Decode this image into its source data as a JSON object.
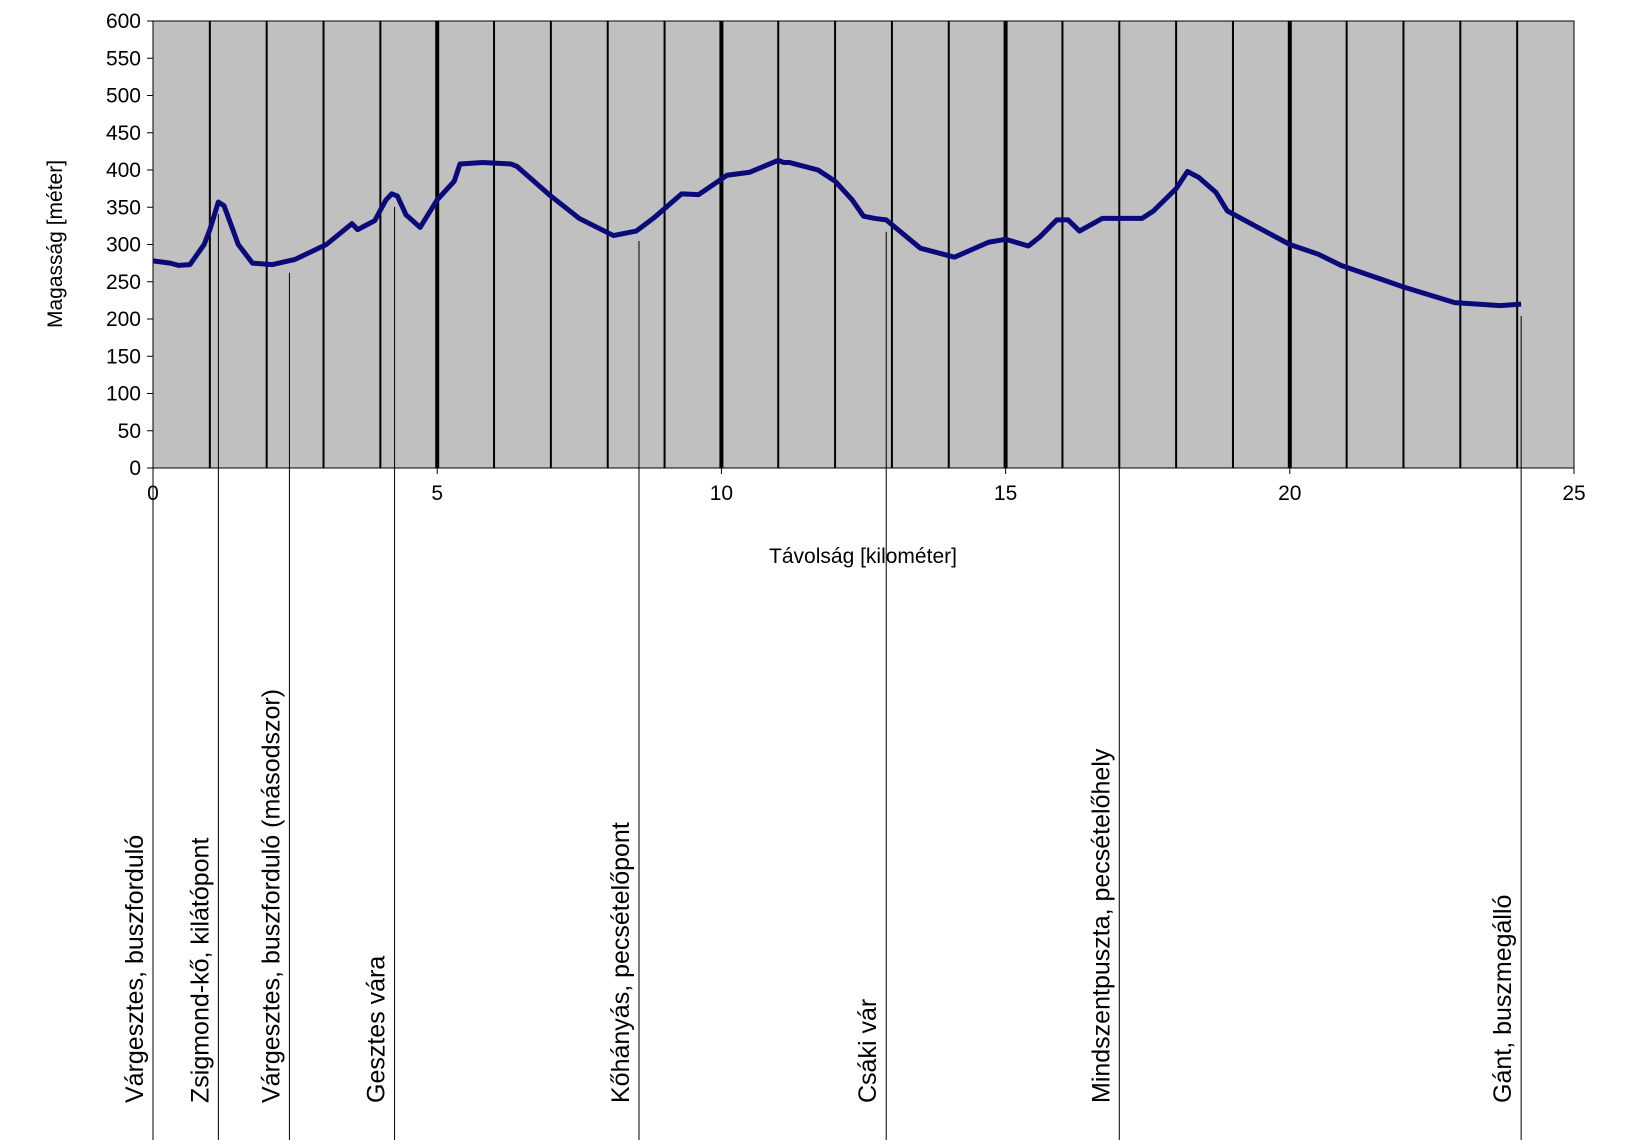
{
  "chart_data": {
    "type": "line",
    "xlabel": "Távolság [kilométer]",
    "ylabel": "Magasság [méter]",
    "xlim": [
      0,
      25
    ],
    "xticks": [
      0,
      5,
      10,
      15,
      20,
      25
    ],
    "ylim": [
      0,
      600
    ],
    "yticks": [
      0,
      50,
      100,
      150,
      200,
      250,
      300,
      350,
      400,
      450,
      500,
      550,
      600
    ],
    "grid": true,
    "series": [
      {
        "color": "#0a0a7a",
        "x": [
          0,
          0.3,
          0.45,
          0.65,
          0.9,
          1.0,
          1.15,
          1.25,
          1.5,
          1.75,
          2.1,
          2.5,
          3.05,
          3.5,
          3.6,
          3.9,
          4.1,
          4.2,
          4.3,
          4.45,
          4.7,
          5.0,
          5.3,
          5.4,
          5.8,
          6.3,
          6.4,
          7.0,
          7.5,
          8.1,
          8.5,
          8.8,
          9.3,
          9.6,
          9.85,
          10.1,
          10.5,
          11.0,
          11.1,
          11.2,
          11.7,
          12.0,
          12.3,
          12.5,
          12.7,
          12.9,
          13.5,
          14.1,
          14.7,
          15.0,
          15.4,
          15.6,
          15.9,
          16.1,
          16.3,
          16.7,
          17.4,
          17.6,
          18.0,
          18.2,
          18.4,
          18.7,
          18.9,
          20.0,
          20.5,
          20.9,
          22.0,
          22.9,
          23.7,
          24.07
        ],
        "values": [
          278,
          275,
          272,
          273,
          300,
          320,
          357,
          352,
          300,
          275,
          273,
          280,
          300,
          328,
          320,
          332,
          360,
          368,
          365,
          340,
          323,
          360,
          385,
          408,
          410,
          408,
          405,
          365,
          335,
          312,
          318,
          335,
          368,
          367,
          380,
          393,
          397,
          413,
          410,
          410,
          400,
          385,
          360,
          338,
          335,
          333,
          295,
          283,
          303,
          307,
          298,
          310,
          333,
          333,
          318,
          335,
          335,
          345,
          375,
          398,
          390,
          370,
          345,
          300,
          287,
          272,
          243,
          222,
          218,
          220
        ]
      }
    ],
    "annotations": [
      {
        "text": "Várgesztes, buszforduló",
        "x": 0
      },
      {
        "text": "Zsigmond-kő, kilátópont",
        "x": 1.15
      },
      {
        "text": "Várgesztes, buszforduló (másodszor)",
        "x": 2.4
      },
      {
        "text": "Gesztes vára",
        "x": 4.25
      },
      {
        "text": "Kőhányás, pecsételőpont",
        "x": 8.55
      },
      {
        "text": "Csáki vár",
        "x": 12.9
      },
      {
        "text": "Mindszentpuszta, pecsételőhely",
        "x": 17.0
      },
      {
        "text": "Gánt, buszmegálló",
        "x": 24.07
      }
    ]
  }
}
